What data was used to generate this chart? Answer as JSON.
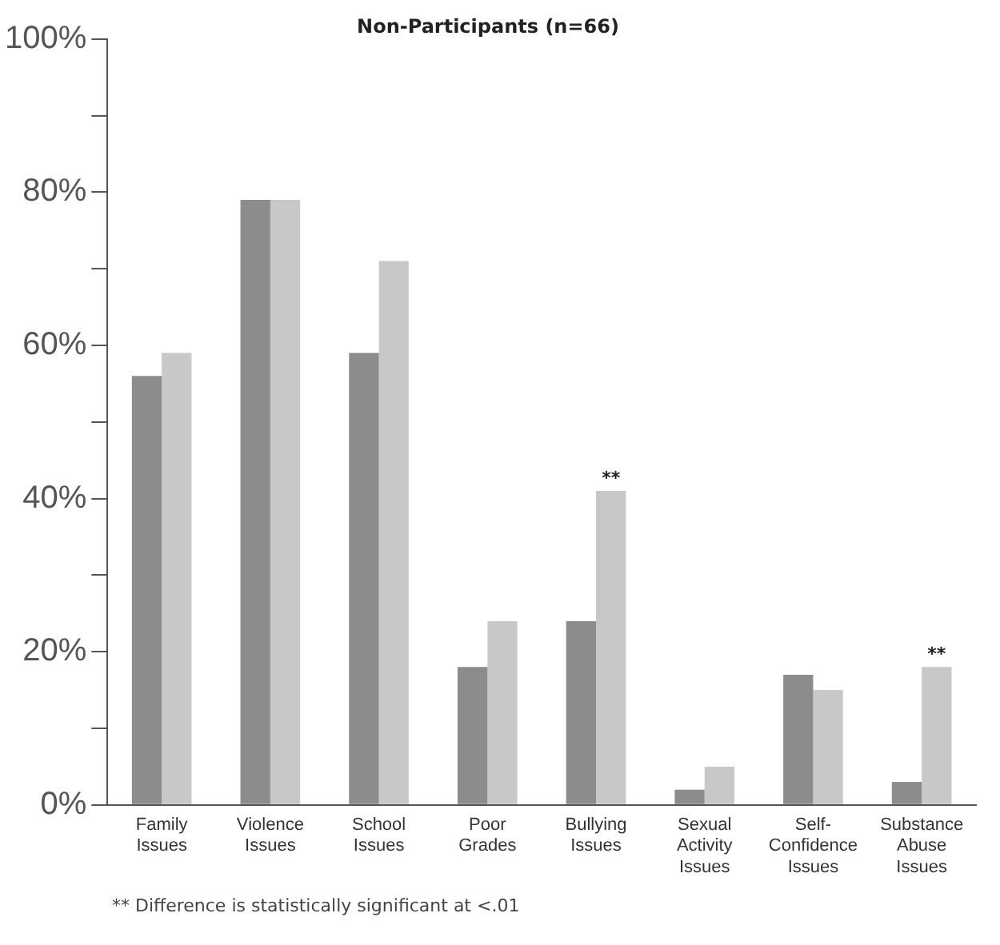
{
  "chart_data": {
    "type": "bar",
    "title": "Non-Participants (n=66)",
    "categories": [
      "Family Issues",
      "Violence Issues",
      "School Issues",
      "Poor Grades",
      "Bullying Issues",
      "Sexual Activity Issues",
      "Self-Confidence Issues",
      "Substance Abuse Issues"
    ],
    "series": [
      {
        "color": "#8c8c8c",
        "values": [
          56,
          79,
          59,
          18,
          24,
          2,
          17,
          3
        ]
      },
      {
        "color": "#c8c8c8",
        "values": [
          59,
          79,
          71,
          24,
          41,
          5,
          15,
          18
        ]
      }
    ],
    "ylim": [
      0,
      100
    ],
    "yticks": [
      {
        "value": 0,
        "label": "0%"
      },
      {
        "value": 10,
        "label": null
      },
      {
        "value": 20,
        "label": "20%"
      },
      {
        "value": 30,
        "label": null
      },
      {
        "value": 40,
        "label": "40%"
      },
      {
        "value": 50,
        "label": null
      },
      {
        "value": 60,
        "label": "60%"
      },
      {
        "value": 70,
        "label": null
      },
      {
        "value": 80,
        "label": "80%"
      },
      {
        "value": 90,
        "label": null
      },
      {
        "value": 100,
        "label": "100%"
      }
    ],
    "grid": false,
    "legend": false,
    "annotations": [
      {
        "text": "**",
        "x": "Bullying Issues",
        "y": 41
      },
      {
        "text": "**",
        "x": "Substance Abuse Issues",
        "y": 18
      },
      "** Difference is statistically significant at <.01"
    ]
  }
}
